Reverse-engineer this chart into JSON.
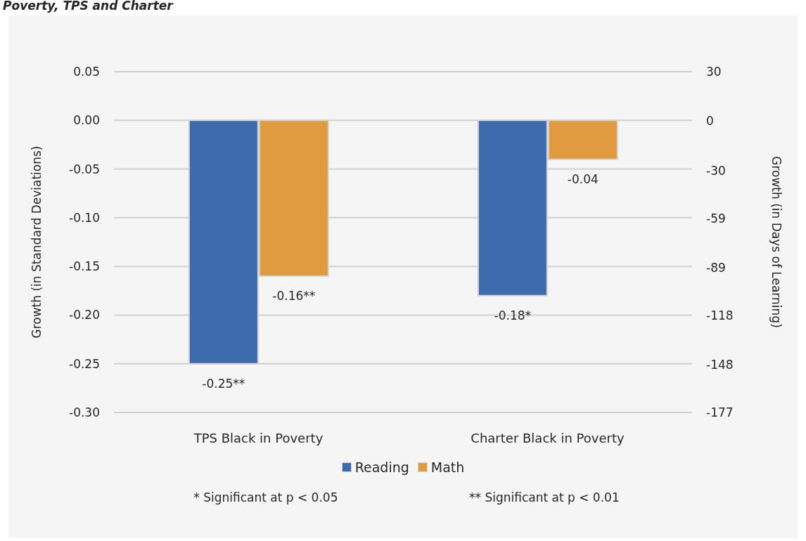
{
  "chart_data": {
    "type": "bar",
    "title": "Poverty, TPS and Charter",
    "categories": [
      "TPS Black in Poverty",
      "Charter Black in Poverty"
    ],
    "series": [
      {
        "name": "Reading",
        "color": "#3d6bad",
        "values": [
          -0.25,
          -0.18
        ],
        "value_labels": [
          "-0.25**",
          "-0.18*"
        ]
      },
      {
        "name": "Math",
        "color": "#e09a40",
        "values": [
          -0.16,
          -0.04
        ],
        "value_labels": [
          "-0.16**",
          "-0.04"
        ]
      }
    ],
    "ylabel": "Growth (in Standard Deviations)",
    "y2label": "Growth (in Days of Learning)",
    "ylim": [
      -0.3,
      0.05
    ],
    "yticks": [
      {
        "value": 0.05,
        "label": "0.05"
      },
      {
        "value": 0,
        "label": "0.00"
      },
      {
        "value": -0.05,
        "label": "-0.05"
      },
      {
        "value": -0.1,
        "label": "-0.10"
      },
      {
        "value": -0.15,
        "label": "-0.15"
      },
      {
        "value": -0.2,
        "label": "-0.20"
      },
      {
        "value": -0.25,
        "label": "-0.25"
      },
      {
        "value": -0.3,
        "label": "-0.30"
      }
    ],
    "y2lim": [
      -177,
      30
    ],
    "y2ticks": [
      30,
      0,
      -30,
      -59,
      -89,
      -118,
      -148,
      -177
    ],
    "grid": "y",
    "legend": "bottom",
    "annotations": [
      "* Significant at p < 0.05",
      "** Significant at p < 0.01"
    ]
  }
}
